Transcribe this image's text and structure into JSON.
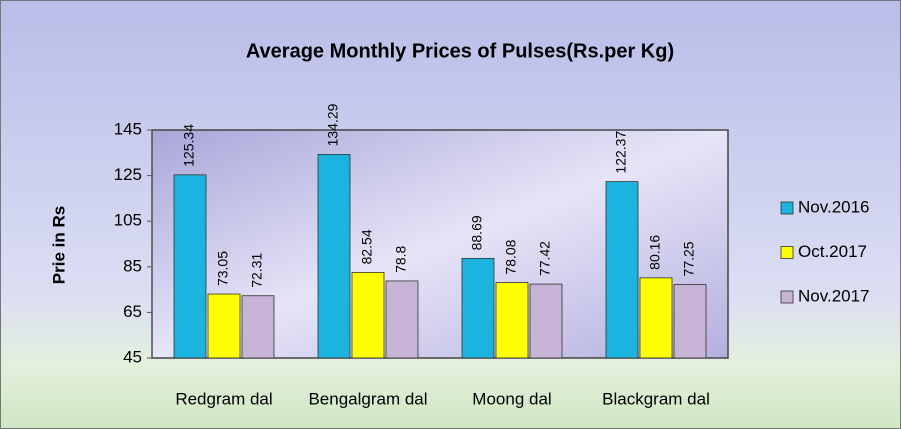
{
  "chart_data": {
    "type": "bar",
    "title": "Average Monthly Prices of Pulses(Rs.per Kg)",
    "y_label": "Prie in Rs",
    "categories": [
      "Redgram dal",
      "Bengalgram dal",
      "Moong dal",
      "Blackgram dal"
    ],
    "series": [
      {
        "name": "Nov.2016",
        "color": "#1ab4de",
        "values": [
          125.34,
          134.29,
          88.69,
          122.37
        ]
      },
      {
        "name": "Oct.2017",
        "color": "#ffff00",
        "values": [
          73.05,
          82.54,
          78.08,
          80.16
        ]
      },
      {
        "name": "Nov.2017",
        "color": "#c6b3d6",
        "values": [
          72.31,
          78.8,
          77.42,
          77.25
        ]
      }
    ],
    "ylim": [
      45,
      145
    ],
    "yticks": [
      45,
      65,
      85,
      105,
      125,
      145
    ],
    "legend": "right"
  }
}
